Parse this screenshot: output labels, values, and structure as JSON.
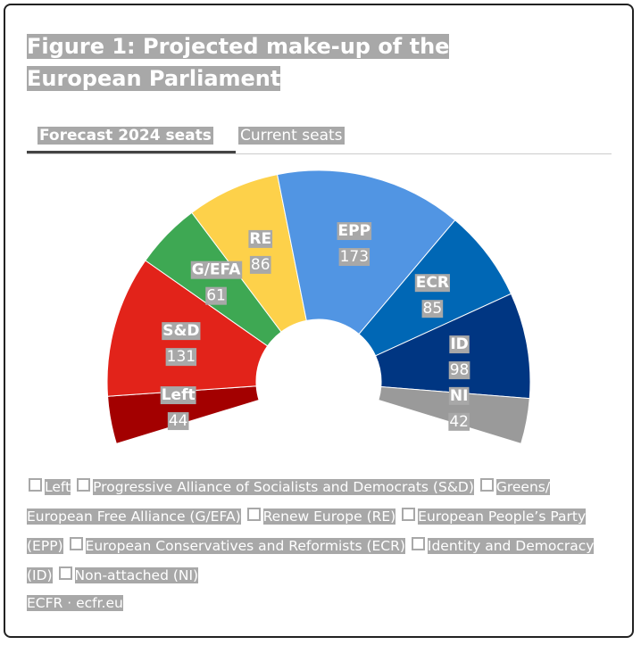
{
  "chart_data": {
    "type": "donut",
    "title": "Figure 1: Projected make-up of the European Parliament",
    "tabs": [
      "Forecast 2024 seats",
      "Current seats"
    ],
    "categories": [
      "Left",
      "S&D",
      "G/EFA",
      "RE",
      "EPP",
      "ECR",
      "ID",
      "NI"
    ],
    "values": [
      44,
      131,
      61,
      86,
      173,
      85,
      98,
      42
    ],
    "colors": [
      "#a30000",
      "#e2231a",
      "#3ea853",
      "#fdd14a",
      "#5195e3",
      "#0067b5",
      "#003682",
      "#9a9a9a"
    ],
    "legend": [
      "Left",
      "Progressive Alliance of Socialists and Democrats (S&D)",
      "Greens/ European Free Alliance (G/EFA)",
      "Renew Europe (RE)",
      "European People’s Party (EPP)",
      "European Conservatives and Reformists (ECR)",
      "Identity and Democracy (ID)",
      "Non-attached (NI)"
    ],
    "source": "ECFR · ecfr.eu"
  }
}
